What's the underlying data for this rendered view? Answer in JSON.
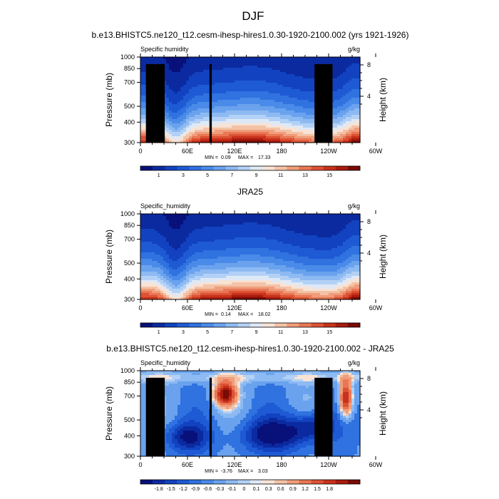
{
  "figure_title": "DJF",
  "chart_data": [
    {
      "type": "heatmap",
      "title": "b.e13.BHISTC5.ne120_t12.cesm-ihesp-hires1.0.30-1920-2100.002 (yrs 1921-1926)",
      "left_label": "Specific humidity",
      "right_label": "g/kg",
      "xlabel": "",
      "ylabel": "Pressure (mb)",
      "y2label": "Height (km)",
      "x_ticks": [
        "0",
        "60E",
        "120E",
        "180",
        "120W",
        "60W"
      ],
      "y_ticks": [
        "300",
        "400",
        "500",
        "700",
        "850",
        "1000"
      ],
      "y2_ticks": [
        "8",
        "4"
      ],
      "ylim": [
        1000,
        300
      ],
      "stats": {
        "min_label": "MIN =",
        "min": "0.09",
        "max_label": "MAX =",
        "max": "17.33"
      },
      "colorbar_labels": [
        "1",
        "3",
        "5",
        "7",
        "9",
        "11",
        "13",
        "15"
      ],
      "levels": [
        0.5,
        1,
        2,
        3,
        4,
        5,
        6,
        7,
        8,
        9,
        10,
        11,
        12,
        13,
        14,
        15,
        16
      ]
    },
    {
      "type": "heatmap",
      "title": "JRA25",
      "left_label": "Specific_humidity",
      "right_label": "g/kg",
      "xlabel": "",
      "ylabel": "Pressure (mb)",
      "y2label": "Height (km)",
      "x_ticks": [
        "0",
        "60E",
        "120E",
        "180",
        "120W",
        "60W"
      ],
      "y_ticks": [
        "300",
        "400",
        "500",
        "700",
        "850",
        "1000"
      ],
      "y2_ticks": [
        "8",
        "4"
      ],
      "ylim": [
        1000,
        300
      ],
      "stats": {
        "min_label": "MIN =",
        "min": "0.14",
        "max_label": "MAX =",
        "max": "18.02"
      },
      "colorbar_labels": [
        "1",
        "3",
        "5",
        "7",
        "9",
        "11",
        "13",
        "15"
      ],
      "levels": [
        0.5,
        1,
        2,
        3,
        4,
        5,
        6,
        7,
        8,
        9,
        10,
        11,
        12,
        13,
        14,
        15,
        16
      ]
    },
    {
      "type": "heatmap",
      "title": "b.e13.BHISTC5.ne120_t12.cesm-ihesp-hires1.0.30-1920-2100.002 - JRA25",
      "left_label": "Specific_humidity",
      "right_label": "g/kg",
      "xlabel": "",
      "ylabel": "Pressure (mb)",
      "y2label": "Height (km)",
      "x_ticks": [
        "0",
        "60E",
        "120E",
        "180",
        "120W",
        "60W"
      ],
      "y_ticks": [
        "300",
        "400",
        "500",
        "700",
        "850",
        "1000"
      ],
      "y2_ticks": [
        "8",
        "4"
      ],
      "ylim": [
        1000,
        300
      ],
      "stats": {
        "min_label": "MIN =",
        "min": "-3.76",
        "max_label": "MAX =",
        "max": "3.03"
      },
      "colorbar_labels": [
        "-1.8",
        "-1.5",
        "-1.2",
        "-0.9",
        "-0.6",
        "-0.3",
        "-0.1",
        "0",
        "0.1",
        "0.3",
        "0.6",
        "0.9",
        "1.2",
        "1.5",
        "1.8"
      ],
      "levels": [
        -1.8,
        -1.5,
        -1.2,
        -0.9,
        -0.6,
        -0.3,
        -0.1,
        0,
        0.1,
        0.3,
        0.6,
        0.9,
        1.2,
        1.5,
        1.8
      ]
    }
  ],
  "colors": {
    "colormap": [
      "#08107a",
      "#0b2aa0",
      "#1242bf",
      "#1e5ad4",
      "#2f72e0",
      "#4a8ae8",
      "#6aa2ee",
      "#8dbaf2",
      "#b3d1f6",
      "#dfe9f6",
      "#f7e3d6",
      "#f4c2a6",
      "#ef9d7b",
      "#e97755",
      "#dc5234",
      "#c8321c",
      "#a91b0e",
      "#7a0b05"
    ],
    "terrain": "#000000"
  }
}
